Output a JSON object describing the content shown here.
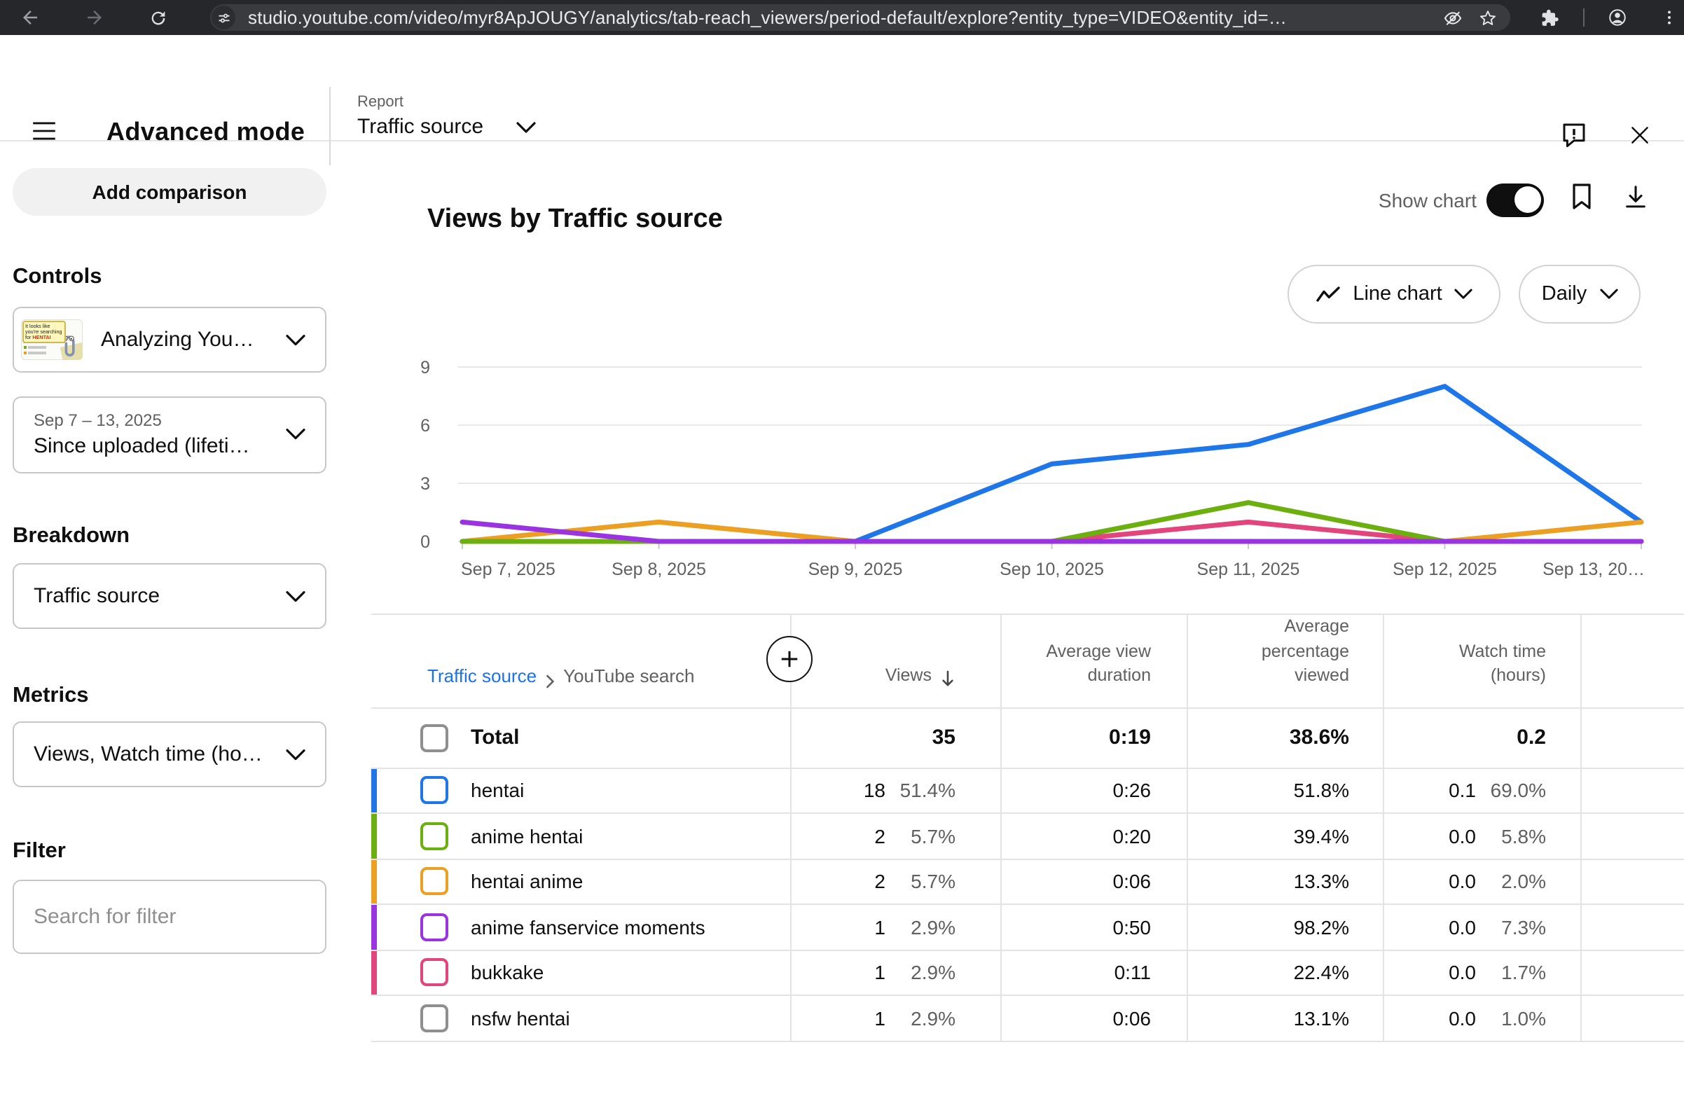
{
  "browser": {
    "url": "studio.youtube.com/video/myr8ApJOUGY/analytics/tab-reach_viewers/period-default/explore?entity_type=VIDEO&entity_id=…"
  },
  "header": {
    "title": "Advanced mode",
    "report_label": "Report",
    "report_value": "Traffic source"
  },
  "sidebar": {
    "add_comparison_label": "Add comparison",
    "controls_label": "Controls",
    "video_selector": {
      "title": "Analyzing You…",
      "thumb_bubble_prefix": "It looks like you're searching for ",
      "thumb_bubble_highlight": "HENTAI"
    },
    "date_selector": {
      "range": "Sep 7 – 13, 2025",
      "value": "Since uploaded (lifeti…"
    },
    "breakdown_label": "Breakdown",
    "breakdown_value": "Traffic source",
    "metrics_label": "Metrics",
    "metrics_value": "Views, Watch time (ho…",
    "filter_label": "Filter",
    "filter_placeholder": "Search for filter"
  },
  "main": {
    "title": "Views by Traffic source",
    "show_chart_label": "Show chart",
    "show_chart_on": true,
    "chart_type_button": "Line chart",
    "granularity_button": "Daily"
  },
  "chart_data": {
    "type": "line",
    "x": [
      "Sep 7, 2025",
      "Sep 8, 2025",
      "Sep 9, 2025",
      "Sep 10, 2025",
      "Sep 11, 2025",
      "Sep 12, 2025",
      "Sep 13, 2025"
    ],
    "x_labels_display": [
      "Sep 7, 2025",
      "Sep 8, 2025",
      "Sep 9, 2025",
      "Sep 10, 2025",
      "Sep 11, 2025",
      "Sep 12, 2025",
      "Sep 13, 20…"
    ],
    "yticks": [
      0,
      3,
      6,
      9
    ],
    "ylim": [
      0,
      9.9
    ],
    "grid": true,
    "legend": "none",
    "series": [
      {
        "name": "hentai",
        "color": "#1e76e8",
        "values": [
          0,
          0,
          0,
          4,
          5,
          8,
          1
        ]
      },
      {
        "name": "hentai anime",
        "color": "#eca023",
        "values": [
          0,
          1,
          0,
          0,
          0,
          0,
          1
        ]
      },
      {
        "name": "bukkake",
        "color": "#e2457c",
        "values": [
          0,
          0,
          0,
          0,
          1,
          0,
          0
        ]
      },
      {
        "name": "anime hentai",
        "color": "#6cb00f",
        "values": [
          0,
          0,
          0,
          0,
          2,
          0,
          0
        ]
      },
      {
        "name": "anime fanservice moments",
        "color": "#9a33e0",
        "values": [
          1,
          0,
          0,
          0,
          0,
          0,
          0
        ]
      }
    ]
  },
  "table": {
    "breadcrumb": {
      "root": "Traffic source",
      "leaf": "YouTube search"
    },
    "columns": {
      "views": "Views",
      "avg_view_duration": "Average view duration",
      "avg_percentage_viewed": "Average percentage viewed",
      "watch_time": "Watch time (hours)"
    },
    "total": {
      "label": "Total",
      "views": "35",
      "avg_view_duration": "0:19",
      "avg_percentage_viewed": "38.6%",
      "watch_time": "0.2"
    },
    "rows": [
      {
        "label": "hentai",
        "color": "#1e76e8",
        "views": "18",
        "views_pct": "51.4%",
        "avg_view_duration": "0:26",
        "avg_percentage_viewed": "51.8%",
        "watch_time": "0.1",
        "watch_time_pct": "69.0%"
      },
      {
        "label": "anime hentai",
        "color": "#6cb00f",
        "views": "2",
        "views_pct": "5.7%",
        "avg_view_duration": "0:20",
        "avg_percentage_viewed": "39.4%",
        "watch_time": "0.0",
        "watch_time_pct": "5.8%"
      },
      {
        "label": "hentai anime",
        "color": "#eca023",
        "views": "2",
        "views_pct": "5.7%",
        "avg_view_duration": "0:06",
        "avg_percentage_viewed": "13.3%",
        "watch_time": "0.0",
        "watch_time_pct": "2.0%"
      },
      {
        "label": "anime fanservice moments",
        "color": "#9a33e0",
        "views": "1",
        "views_pct": "2.9%",
        "avg_view_duration": "0:50",
        "avg_percentage_viewed": "98.2%",
        "watch_time": "0.0",
        "watch_time_pct": "7.3%"
      },
      {
        "label": "bukkake",
        "color": "#e2457c",
        "views": "1",
        "views_pct": "2.9%",
        "avg_view_duration": "0:11",
        "avg_percentage_viewed": "22.4%",
        "watch_time": "0.0",
        "watch_time_pct": "1.7%"
      },
      {
        "label": "nsfw hentai",
        "color": null,
        "views": "1",
        "views_pct": "2.9%",
        "avg_view_duration": "0:06",
        "avg_percentage_viewed": "13.1%",
        "watch_time": "0.0",
        "watch_time_pct": "1.0%"
      }
    ]
  }
}
